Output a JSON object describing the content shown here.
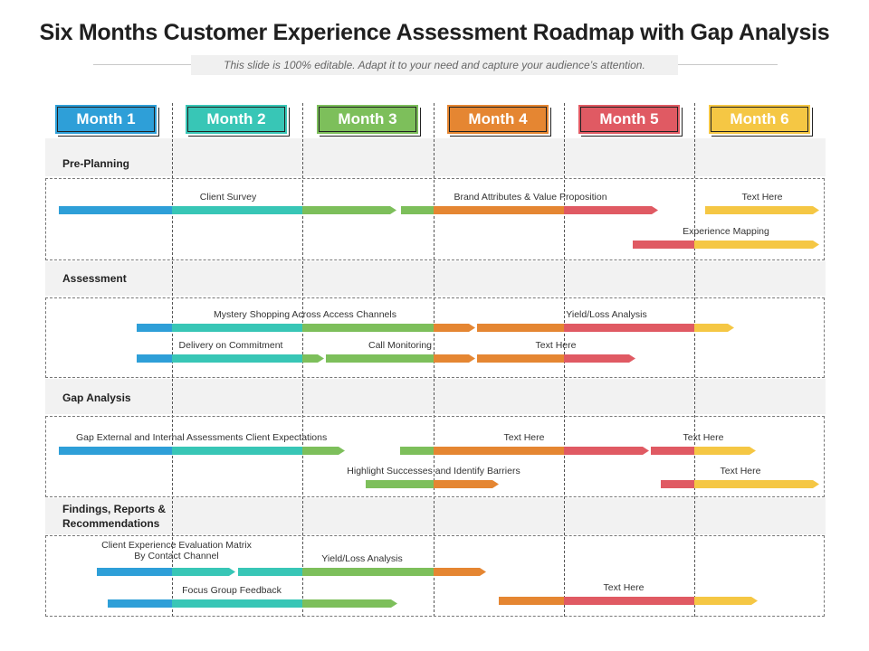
{
  "title": "Six Months Customer Experience Assessment Roadmap with Gap Analysis",
  "subtitle": "This slide is 100% editable. Adapt it to your need and capture your audience’s attention.",
  "colors": {
    "month1": "#2e9fd8",
    "month2": "#38c6b6",
    "month3": "#7dbf5b",
    "month4": "#e58632",
    "month5": "#e05a63",
    "month6": "#f5c744"
  },
  "months": [
    {
      "label": "Month 1",
      "color": "#2e9fd8"
    },
    {
      "label": "Month 2",
      "color": "#38c6b6"
    },
    {
      "label": "Month 3",
      "color": "#7dbf5b"
    },
    {
      "label": "Month 4",
      "color": "#e58632"
    },
    {
      "label": "Month 5",
      "color": "#e05a63"
    },
    {
      "label": "Month 6",
      "color": "#f5c744"
    }
  ],
  "sections": [
    {
      "label": "Pre-Planning",
      "tasks": [
        {
          "label": "Client Survey"
        },
        {
          "label": "Brand Attributes & Value Proposition"
        },
        {
          "label": "Text Here"
        },
        {
          "label": "Experience Mapping"
        }
      ]
    },
    {
      "label": "Assessment",
      "tasks": [
        {
          "label": "Mystery Shopping Across Access Channels"
        },
        {
          "label": "Yield/Loss Analysis"
        },
        {
          "label": "Delivery on Commitment"
        },
        {
          "label": "Call Monitoring"
        },
        {
          "label": "Text Here"
        }
      ]
    },
    {
      "label": "Gap Analysis",
      "tasks": [
        {
          "label": "Gap External and Internal Assessments Client Expectations"
        },
        {
          "label": "Text Here"
        },
        {
          "label": "Text Here"
        },
        {
          "label": "Highlight Successes and Identify Barriers"
        },
        {
          "label": "Text Here"
        }
      ]
    },
    {
      "label": "Findings, Reports & Recommendations",
      "label_line1": "Findings, Reports &",
      "label_line2": "Recommendations",
      "tasks": [
        {
          "label": "Client Experience Evaluation Matrix",
          "label_line2": "By Contact Channel"
        },
        {
          "label": "Yield/Loss Analysis"
        },
        {
          "label": "Focus Group Feedback"
        },
        {
          "label": "Text Here"
        }
      ]
    }
  ]
}
